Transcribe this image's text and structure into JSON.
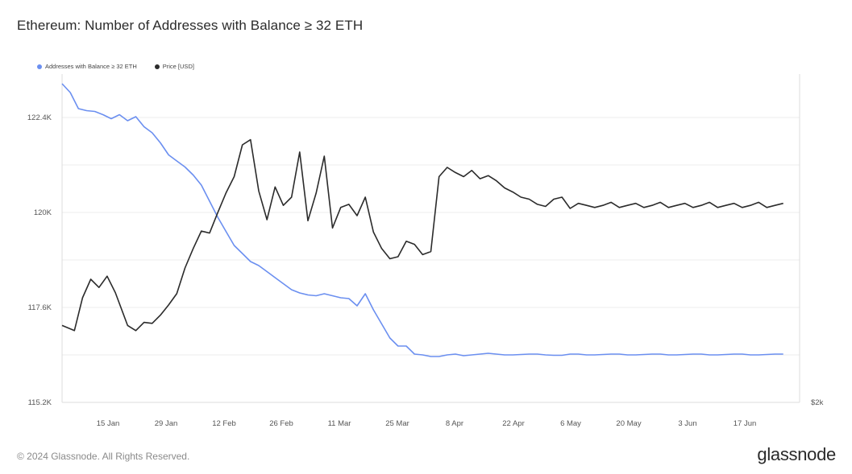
{
  "title": "Ethereum: Number of Addresses with Balance ≥ 32 ETH",
  "footer": {
    "copyright": "© 2024 Glassnode. All Rights Reserved.",
    "brand": "glassnode"
  },
  "colors": {
    "addresses": "#6b8ff0",
    "price": "#2b2b2b",
    "grid": "#ececec"
  },
  "chart_data": {
    "type": "line",
    "title": "Ethereum: Number of Addresses with Balance ≥ 32 ETH",
    "x_tick_labels": [
      "15 Jan",
      "29 Jan",
      "12 Feb",
      "26 Feb",
      "11 Mar",
      "25 Mar",
      "8 Apr",
      "22 Apr",
      "6 May",
      "20 May",
      "3 Jun",
      "17 Jun"
    ],
    "y_left": {
      "ticks": [
        "122.4K",
        "120K",
        "117.6K",
        "115.2K"
      ],
      "ylim": [
        115200,
        124000
      ]
    },
    "y_right": {
      "ticks": [
        "$2k"
      ]
    },
    "grid": true,
    "legend_position": "top-left",
    "series": [
      {
        "name": "Addresses with Balance ≥ 32 ETH",
        "axis": "left",
        "x_days": [
          0,
          2,
          4,
          6,
          8,
          10,
          12,
          14,
          16,
          18,
          20,
          22,
          24,
          26,
          28,
          30,
          32,
          34,
          36,
          38,
          40,
          42,
          44,
          46,
          48,
          50,
          52,
          54,
          56,
          58,
          60,
          62,
          64,
          66,
          68,
          70,
          72,
          74,
          76,
          78,
          80,
          82,
          84,
          86,
          88,
          90,
          92,
          94,
          96,
          98,
          100,
          102,
          104,
          106,
          108,
          110,
          112,
          114,
          116,
          118,
          120,
          122,
          124,
          126,
          128,
          130,
          132,
          134,
          136,
          138,
          140,
          142,
          144,
          146,
          148,
          150,
          152,
          154,
          156,
          158,
          160,
          162,
          164,
          166,
          168,
          170,
          172,
          174,
          176
        ],
        "values": [
          123120,
          122900,
          122500,
          122450,
          122430,
          122350,
          122250,
          122350,
          122200,
          122300,
          122050,
          121900,
          121650,
          121350,
          121200,
          121050,
          120850,
          120600,
          120200,
          119800,
          119450,
          119100,
          118900,
          118700,
          118600,
          118450,
          118300,
          118150,
          118000,
          117920,
          117870,
          117850,
          117900,
          117850,
          117800,
          117780,
          117600,
          117900,
          117500,
          117150,
          116800,
          116600,
          116600,
          116400,
          116380,
          116340,
          116340,
          116380,
          116400,
          116360,
          116380,
          116400,
          116420,
          116400,
          116380,
          116380,
          116390,
          116400,
          116400,
          116380,
          116370,
          116370,
          116400,
          116400,
          116380,
          116380,
          116390,
          116400,
          116400,
          116380,
          116380,
          116390,
          116400,
          116400,
          116380,
          116380,
          116390,
          116400,
          116400,
          116380,
          116380,
          116390,
          116400,
          116400,
          116380,
          116380,
          116390,
          116400,
          116400
        ]
      },
      {
        "name": "Price [USD]",
        "axis": "right",
        "x_days": [
          0,
          3,
          5,
          7,
          9,
          11,
          13,
          16,
          18,
          20,
          22,
          24,
          26,
          28,
          30,
          32,
          34,
          36,
          38,
          40,
          42,
          44,
          46,
          48,
          50,
          52,
          54,
          56,
          58,
          60,
          62,
          64,
          66,
          68,
          70,
          72,
          74,
          76,
          78,
          80,
          82,
          84,
          86,
          88,
          90,
          92,
          94,
          96,
          98,
          100,
          102,
          104,
          106,
          108,
          110,
          112,
          114,
          116,
          118,
          120,
          122,
          124,
          126,
          128,
          130,
          132,
          134,
          136,
          138,
          140,
          142,
          144,
          146,
          148,
          150,
          152,
          154,
          156,
          158,
          160,
          162,
          164,
          166,
          168,
          170,
          172,
          174,
          176
        ],
        "values": [
          2250,
          2200,
          2520,
          2700,
          2620,
          2730,
          2570,
          2250,
          2200,
          2280,
          2270,
          2350,
          2450,
          2560,
          2810,
          3000,
          3170,
          3150,
          3350,
          3540,
          3700,
          4010,
          4060,
          3560,
          3280,
          3600,
          3420,
          3500,
          3940,
          3270,
          3540,
          3900,
          3200,
          3400,
          3430,
          3320,
          3500,
          3160,
          3000,
          2900,
          2920,
          3070,
          3040,
          2940,
          2970,
          3700,
          3790,
          3740,
          3700,
          3760,
          3680,
          3710,
          3660,
          3590,
          3550,
          3500,
          3480,
          3430,
          3410,
          3480,
          3500,
          3390,
          3440,
          3420,
          3400,
          3420,
          3450,
          3400,
          3420,
          3440,
          3400,
          3420,
          3450,
          3400,
          3420,
          3440,
          3400,
          3420,
          3450,
          3400,
          3420,
          3440,
          3400,
          3420,
          3450,
          3400,
          3420,
          3440
        ]
      }
    ]
  }
}
